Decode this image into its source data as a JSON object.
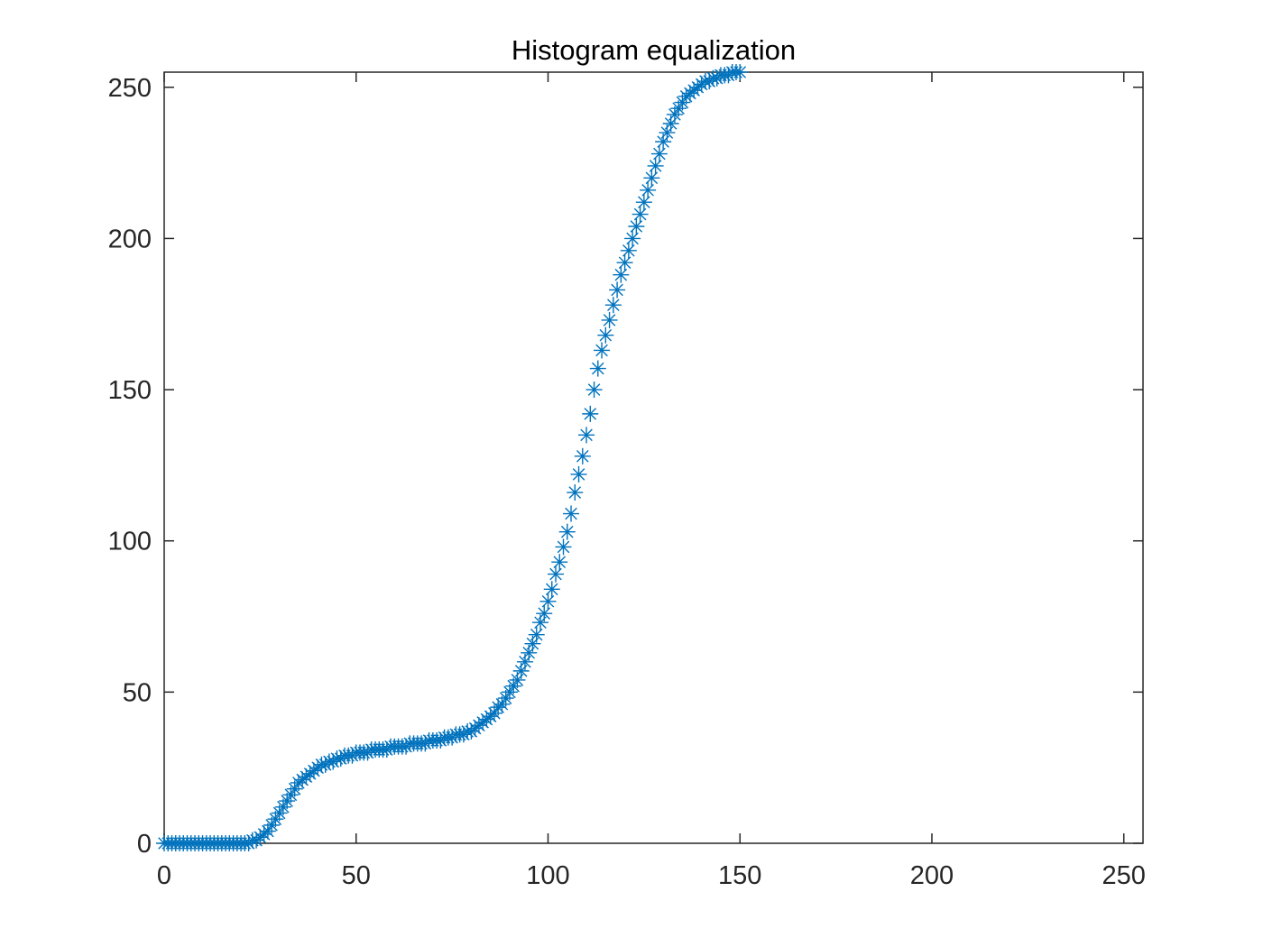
{
  "chart_data": {
    "type": "scatter",
    "title": "Histogram equalization",
    "xlabel": "",
    "ylabel": "",
    "xlim": [
      0,
      255
    ],
    "ylim": [
      0,
      255
    ],
    "xticks": [
      "0",
      "50",
      "100",
      "150",
      "200",
      "250"
    ],
    "yticks": [
      "0",
      "50",
      "100",
      "150",
      "200",
      "250"
    ],
    "grid": false,
    "marker": "asterisk",
    "color": "#0072BD",
    "x_start": 0,
    "x_step": 1,
    "y": [
      0,
      0,
      0,
      0,
      0,
      0,
      0,
      0,
      0,
      0,
      0,
      0,
      0,
      0,
      0,
      0,
      0,
      0,
      0,
      0,
      0,
      0,
      0,
      1,
      1,
      2,
      3,
      4,
      6,
      8,
      10,
      12,
      14,
      16,
      18,
      20,
      21,
      22,
      23,
      24,
      25,
      26,
      26,
      27,
      27,
      28,
      28,
      29,
      29,
      29,
      30,
      30,
      30,
      30,
      31,
      31,
      31,
      31,
      31,
      32,
      32,
      32,
      32,
      32,
      33,
      33,
      33,
      33,
      33,
      34,
      34,
      34,
      34,
      35,
      35,
      35,
      36,
      36,
      36,
      37,
      37,
      38,
      39,
      40,
      41,
      42,
      43,
      45,
      46,
      48,
      50,
      52,
      54,
      57,
      60,
      63,
      66,
      69,
      73,
      76,
      80,
      84,
      89,
      93,
      98,
      103,
      109,
      116,
      122,
      128,
      135,
      142,
      150,
      157,
      163,
      168,
      173,
      178,
      183,
      188,
      192,
      196,
      200,
      204,
      208,
      212,
      216,
      220,
      224,
      228,
      232,
      235,
      238,
      241,
      243,
      245,
      247,
      248,
      249,
      250,
      251,
      252,
      252,
      253,
      253,
      254,
      254,
      254,
      255,
      255,
      255
    ]
  }
}
